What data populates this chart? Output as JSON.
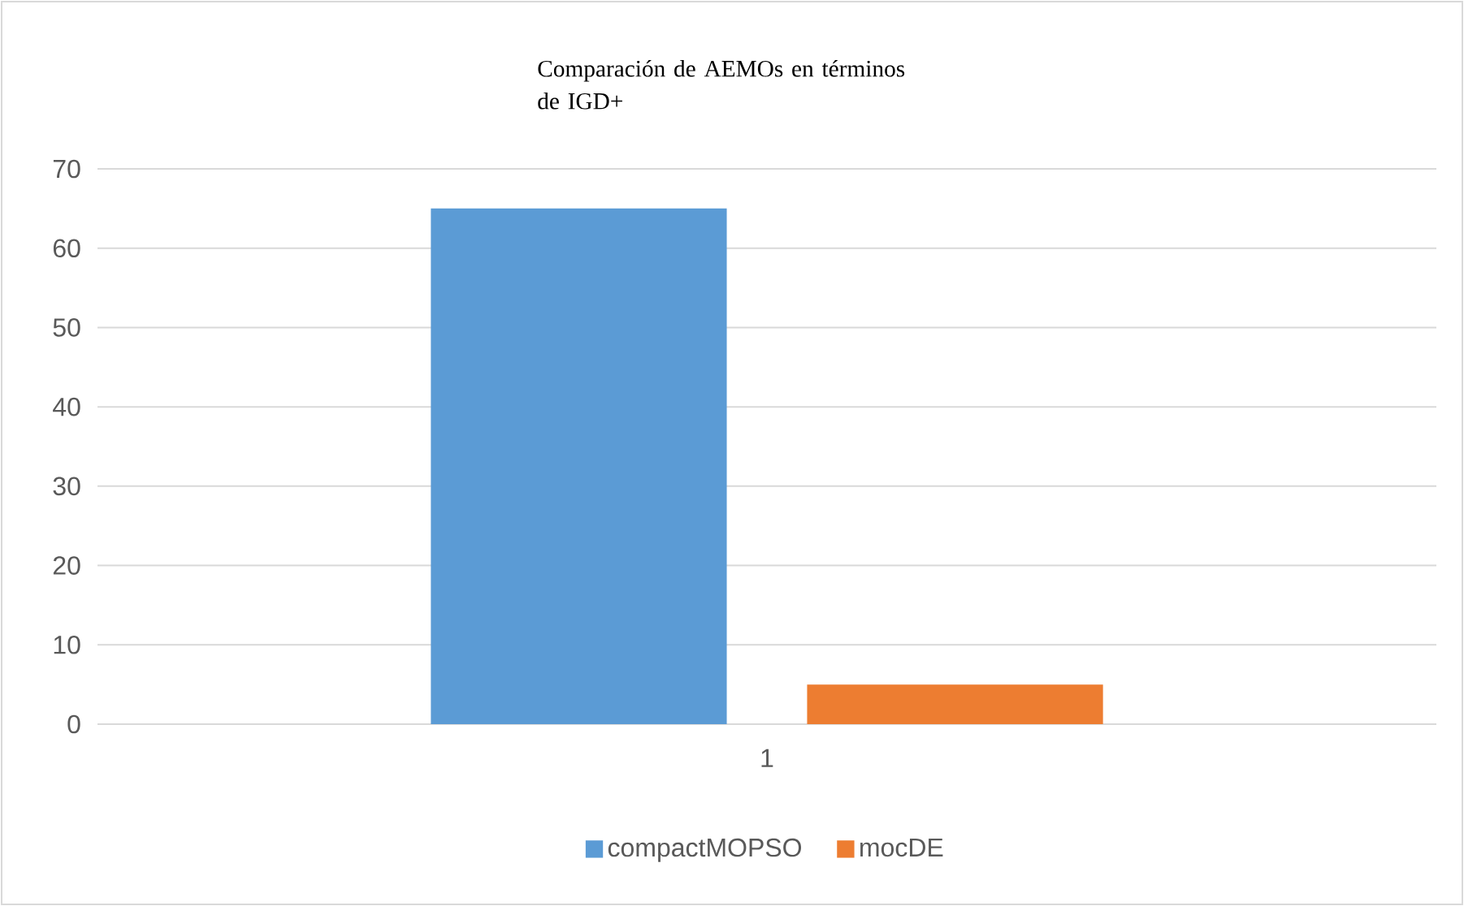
{
  "chart_data": {
    "type": "bar",
    "title": "Comparación de AEMOs en términos de IGD+",
    "categories": [
      "1"
    ],
    "series": [
      {
        "name": "compactMOPSO",
        "color": "#5b9bd5",
        "values": [
          65
        ]
      },
      {
        "name": "mocDE",
        "color": "#ed7d31",
        "values": [
          5
        ]
      }
    ],
    "ylim": [
      0,
      70
    ],
    "yticks": [
      0,
      10,
      20,
      30,
      40,
      50,
      60,
      70
    ],
    "grid": "y",
    "legend": "bottom"
  }
}
